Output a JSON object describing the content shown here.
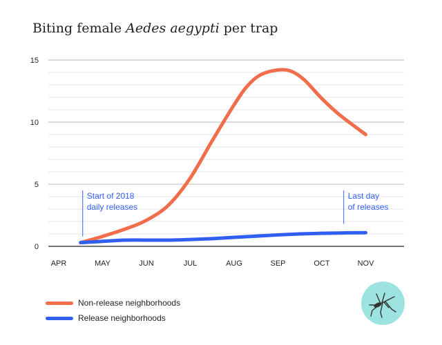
{
  "colors": {
    "non_release": "#f26d4b",
    "release": "#2f5ef0",
    "grid": "#cccccc",
    "axis": "#222222",
    "annotation": "#2f5ef0",
    "badge": "#9de3e0"
  },
  "chart_data": {
    "type": "line",
    "title_prefix": "Biting female ",
    "title_species": "Aedes aegypti",
    "title_suffix": " per trap",
    "categories": [
      "APR",
      "MAY",
      "JUN",
      "JUL",
      "AUG",
      "SEP",
      "OCT",
      "NOV"
    ],
    "ylim": [
      0,
      15
    ],
    "y_ticks": [
      0,
      5,
      10,
      15
    ],
    "grid": true,
    "series": [
      {
        "name": "Non-release neighborhoods",
        "x": [
          0.5,
          1.0,
          1.6,
          2.0,
          2.5,
          3.0,
          3.5,
          4.0,
          4.3,
          4.6,
          5.0,
          5.3,
          5.6,
          6.0,
          6.4,
          7.0
        ],
        "values": [
          0.3,
          0.8,
          1.5,
          2.1,
          3.3,
          5.5,
          8.5,
          11.4,
          12.9,
          13.8,
          14.2,
          14.1,
          13.4,
          11.9,
          10.6,
          9.0
        ]
      },
      {
        "name": "Release neighborhoods",
        "x": [
          0.5,
          1.0,
          1.5,
          2.0,
          2.5,
          3.0,
          3.5,
          4.0,
          4.5,
          5.0,
          5.5,
          6.0,
          6.5,
          7.0
        ],
        "values": [
          0.3,
          0.4,
          0.5,
          0.5,
          0.5,
          0.55,
          0.62,
          0.72,
          0.82,
          0.92,
          1.0,
          1.05,
          1.08,
          1.1
        ]
      }
    ],
    "annotations": [
      {
        "x": 0.5,
        "line": [
          0.8,
          4.5
        ],
        "text": [
          "Start of 2018",
          "daily releases"
        ]
      },
      {
        "x": 6.5,
        "line": [
          1.8,
          4.5
        ],
        "text": [
          "Last day",
          "of releases"
        ]
      }
    ]
  },
  "legend": {
    "items": [
      {
        "label": "Non-release neighborhoods"
      },
      {
        "label": "Release neighborhoods"
      }
    ]
  },
  "badge": {
    "icon": "mosquito-icon"
  }
}
